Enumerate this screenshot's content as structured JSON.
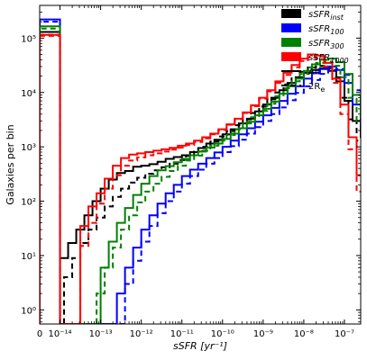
{
  "chart_data": {
    "type": "histogram-step",
    "xlabel": "sSFR [yr⁻¹]",
    "ylabel": "Galaxies per bin",
    "x_scale": "log (0 bin at left edge, then 10^-14 … 10^-7)",
    "y_scale": "log",
    "xlim_log10": [
      -14.5,
      -6.6
    ],
    "ylim": [
      0.55,
      400000
    ],
    "x_ticks": [
      "0",
      "10⁻¹⁴",
      "10⁻¹³",
      "10⁻¹²",
      "10⁻¹¹",
      "10⁻¹⁰",
      "10⁻⁹",
      "10⁻⁸",
      "10⁻⁷"
    ],
    "x_tick_values_log10": [
      -14.5,
      -14,
      -13,
      -12,
      -11,
      -10,
      -9,
      -8,
      -7
    ],
    "y_ticks": [
      "10⁰",
      "10¹",
      "10²",
      "10³",
      "10⁴",
      "10⁵"
    ],
    "y_tick_values": [
      1,
      10,
      100,
      1000,
      10000,
      100000
    ],
    "grid": false,
    "legend_position": "top-right",
    "legend": [
      {
        "label": "sSFR",
        "sub": "inst",
        "type": "patch",
        "color": "#000000"
      },
      {
        "label": "sSFR",
        "sub": "100",
        "type": "patch",
        "color": "#0000ff"
      },
      {
        "label": "sSFR",
        "sub": "300",
        "type": "patch",
        "color": "#008000"
      },
      {
        "label": "sSFR",
        "sub": "1000",
        "type": "patch",
        "color": "#ff0000"
      },
      {
        "label": "All",
        "sub": "",
        "type": "solid-line",
        "color": "#000000"
      },
      {
        "label": "2R",
        "sub": "e",
        "type": "dashed-line",
        "color": "#000000"
      }
    ],
    "zero_bin": {
      "x_start_log10": -14.5,
      "x_end_log10": -14.0
    },
    "series": [
      {
        "name": "sSFR_inst All",
        "color": "#000000",
        "dashed": false,
        "zero": 130000,
        "start": -14.0,
        "counts": [
          9,
          17,
          30,
          55,
          100,
          170,
          250,
          330,
          360,
          430,
          450,
          480,
          530,
          600,
          650,
          700,
          800,
          950,
          1150,
          1350,
          1700,
          2100,
          2700,
          3300,
          4500,
          6000,
          8000,
          11000,
          15000,
          19000,
          23000,
          26000,
          28000,
          25000,
          16000,
          7000,
          3000,
          1500,
          700,
          300,
          100,
          25,
          5,
          1.2
        ]
      },
      {
        "name": "sSFR_inst 2Re",
        "color": "#000000",
        "dashed": true,
        "zero": 115000,
        "start": -13.9,
        "counts": [
          4,
          9,
          17,
          30,
          50,
          80,
          120,
          170,
          220,
          270,
          320,
          370,
          420,
          490,
          570,
          680,
          820,
          1000,
          1250,
          1550,
          1950,
          2500,
          3200,
          4200,
          5500,
          7500,
          10000,
          14000,
          19000,
          24000,
          29000,
          31000,
          28000,
          19000,
          8000,
          3200,
          1300,
          600,
          250,
          90,
          25,
          5,
          1
        ]
      },
      {
        "name": "sSFR_100 All",
        "color": "#0000ff",
        "dashed": false,
        "zero": 220000,
        "start": -12.6,
        "counts": [
          2,
          6,
          14,
          30,
          55,
          90,
          140,
          200,
          290,
          380,
          490,
          620,
          790,
          1000,
          1300,
          1700,
          2200,
          2900,
          3800,
          5200,
          7000,
          9500,
          13000,
          18000,
          23000,
          27000,
          30000,
          26000,
          15000,
          6000,
          2500,
          1200,
          500,
          180,
          40,
          7,
          1
        ]
      },
      {
        "name": "sSFR_100 2Re",
        "color": "#0000ff",
        "dashed": true,
        "zero": 200000,
        "start": -12.4,
        "counts": [
          3,
          8,
          18,
          35,
          60,
          100,
          150,
          210,
          290,
          380,
          490,
          620,
          800,
          1030,
          1350,
          1750,
          2300,
          3000,
          4000,
          5300,
          7200,
          9800,
          13000,
          17000,
          22000,
          26000,
          27000,
          21000,
          11000,
          4500,
          2000,
          900,
          350,
          110,
          25,
          4
        ]
      },
      {
        "name": "sSFR_300 All",
        "color": "#008000",
        "dashed": false,
        "zero": 165000,
        "start": -13.0,
        "counts": [
          6,
          18,
          40,
          75,
          130,
          210,
          290,
          370,
          440,
          520,
          600,
          700,
          820,
          970,
          1150,
          1400,
          1750,
          2200,
          2900,
          3800,
          5000,
          6800,
          9500,
          13000,
          18000,
          25000,
          33000,
          40000,
          42000,
          36000,
          22000,
          9000,
          3500,
          1500,
          800,
          350,
          100,
          20,
          3
        ]
      },
      {
        "name": "sSFR_300 2Re",
        "color": "#008000",
        "dashed": true,
        "zero": 150000,
        "start": -13.1,
        "counts": [
          2,
          6,
          14,
          30,
          55,
          95,
          150,
          210,
          280,
          360,
          450,
          560,
          690,
          850,
          1050,
          1300,
          1650,
          2100,
          2700,
          3500,
          4600,
          6200,
          8500,
          12000,
          16000,
          22000,
          29000,
          35000,
          37000,
          31000,
          19000,
          8000,
          3000,
          1200,
          800,
          300,
          80,
          15,
          2
        ]
      },
      {
        "name": "sSFR_1000 All",
        "color": "#ff0000",
        "dashed": false,
        "zero": 115000,
        "start": -13.5,
        "counts": [
          35,
          80,
          140,
          260,
          450,
          620,
          720,
          760,
          800,
          850,
          900,
          960,
          1050,
          1150,
          1300,
          1500,
          1750,
          2100,
          2600,
          3300,
          4300,
          5800,
          8000,
          11000,
          16000,
          23000,
          32000,
          42000,
          50000,
          48000,
          35000,
          18000,
          6000,
          1500,
          300,
          40,
          5,
          1
        ]
      },
      {
        "name": "sSFR_1000 2Re",
        "color": "#ff0000",
        "dashed": true,
        "zero": 110000,
        "start": -13.5,
        "counts": [
          15,
          40,
          90,
          170,
          300,
          450,
          560,
          640,
          700,
          760,
          820,
          890,
          970,
          1080,
          1230,
          1430,
          1700,
          2050,
          2550,
          3250,
          4200,
          5600,
          7700,
          10500,
          15000,
          21000,
          29000,
          38000,
          44000,
          41000,
          30000,
          15000,
          4000,
          900,
          150,
          20,
          3
        ]
      }
    ]
  }
}
